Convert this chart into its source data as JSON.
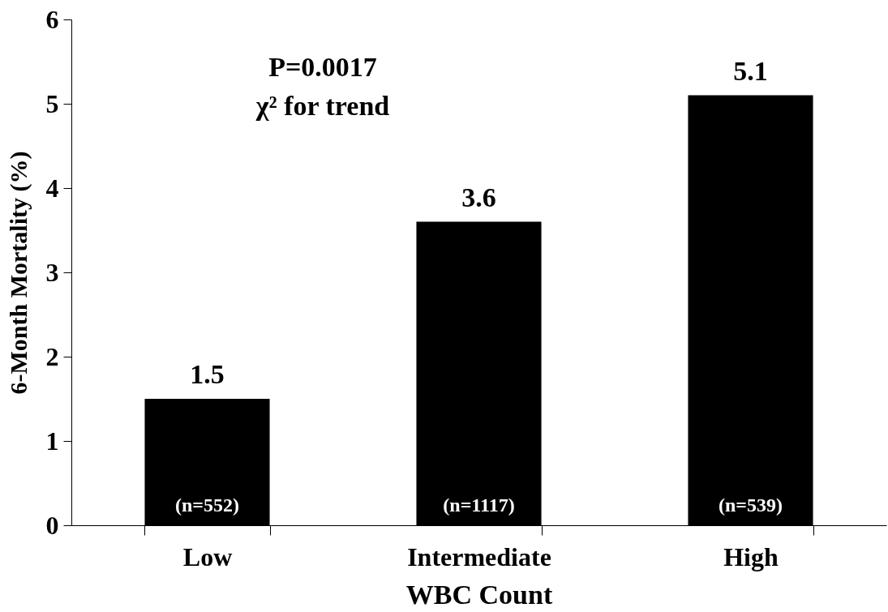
{
  "chart_data": {
    "type": "bar",
    "xlabel": "WBC Count",
    "ylabel": "6-Month Mortality (%)",
    "categories": [
      "Low",
      "Intermediate",
      "High"
    ],
    "values": [
      1.5,
      3.6,
      5.1
    ],
    "color": "#000000",
    "data_labels": true,
    "ylim": [
      0,
      6
    ],
    "yticks": [
      0,
      1,
      2,
      3,
      4,
      5,
      6
    ],
    "grid": false,
    "annotations": [
      "P=0.0017",
      "χ² for trend",
      "(n=552)",
      "(n=1117)",
      "(n=539)"
    ]
  }
}
